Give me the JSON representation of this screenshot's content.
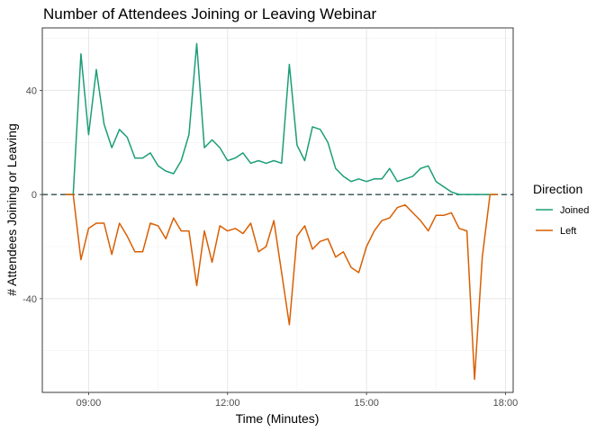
{
  "chart_data": {
    "type": "line",
    "title": "Number of Attendees Joining or Leaving Webinar",
    "xlabel": "Time (Minutes)",
    "ylabel": "# Attendees Joining or Leaving",
    "x_tick_labels": [
      "09:00",
      "12:00",
      "15:00",
      "18:00"
    ],
    "x_ticks": [
      540,
      720,
      900,
      1080
    ],
    "y_tick_labels": [
      "40",
      "0",
      "-40"
    ],
    "y_ticks": [
      40,
      0,
      -40
    ],
    "xlim": [
      480,
      1090
    ],
    "ylim": [
      -76,
      64
    ],
    "grid": true,
    "reference_line": {
      "y": 0,
      "style": "dashed",
      "color": "#2f4f4f"
    },
    "legend": {
      "title": "Direction",
      "position": "right"
    },
    "series": [
      {
        "name": "Joined",
        "color": "#1b9e77",
        "x": [
          510,
          520,
          530,
          540,
          550,
          560,
          570,
          580,
          590,
          600,
          610,
          620,
          630,
          640,
          650,
          660,
          670,
          680,
          690,
          700,
          710,
          720,
          730,
          740,
          750,
          760,
          770,
          780,
          790,
          800,
          810,
          820,
          830,
          840,
          850,
          860,
          870,
          880,
          890,
          900,
          910,
          920,
          930,
          940,
          950,
          960,
          970,
          980,
          990,
          1000,
          1010,
          1020,
          1030,
          1040,
          1050,
          1060,
          1070
        ],
        "y": [
          0,
          0,
          54,
          23,
          48,
          27,
          18,
          25,
          22,
          14,
          14,
          16,
          11,
          9,
          8,
          13,
          23,
          58,
          18,
          21,
          18,
          13,
          14,
          16,
          12,
          13,
          12,
          13,
          12,
          50,
          19,
          13,
          26,
          25,
          20,
          10,
          7,
          5,
          6,
          5,
          6,
          6,
          10,
          5,
          6,
          7,
          10,
          11,
          5,
          3,
          1,
          0,
          0,
          0,
          0,
          0,
          0
        ]
      },
      {
        "name": "Left",
        "color": "#d95f02",
        "x": [
          510,
          520,
          530,
          540,
          550,
          560,
          570,
          580,
          590,
          600,
          610,
          620,
          630,
          640,
          650,
          660,
          670,
          680,
          690,
          700,
          710,
          720,
          730,
          740,
          750,
          760,
          770,
          780,
          790,
          800,
          810,
          820,
          830,
          840,
          850,
          860,
          870,
          880,
          890,
          900,
          910,
          920,
          930,
          940,
          950,
          960,
          970,
          980,
          990,
          1000,
          1010,
          1020,
          1030,
          1040,
          1050,
          1060,
          1070
        ],
        "y": [
          0,
          0,
          -25,
          -13,
          -11,
          -11,
          -23,
          -11,
          -16,
          -22,
          -22,
          -11,
          -12,
          -17,
          -9,
          -14,
          -14,
          -35,
          -14,
          -26,
          -12,
          -14,
          -13,
          -15,
          -11,
          -22,
          -20,
          -10,
          -30,
          -50,
          -16,
          -12,
          -21,
          -18,
          -17,
          -24,
          -22,
          -28,
          -30,
          -20,
          -14,
          -10,
          -9,
          -5,
          -4,
          -7,
          -10,
          -14,
          -8,
          -8,
          -7,
          -13,
          -14,
          -71,
          -24,
          0,
          0
        ]
      }
    ]
  }
}
